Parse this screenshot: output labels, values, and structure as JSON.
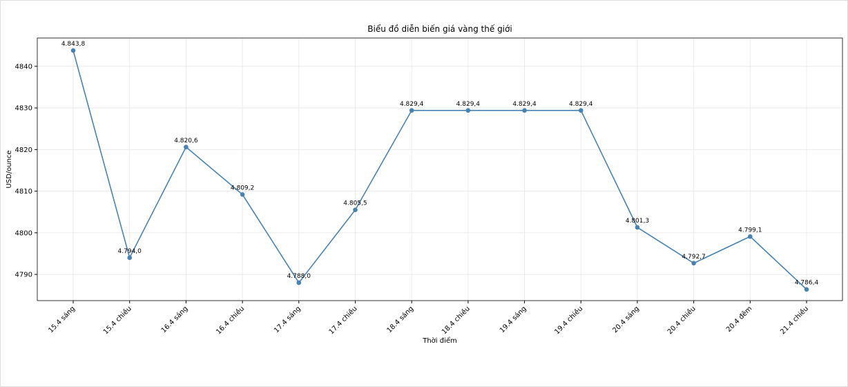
{
  "chart_data": {
    "type": "line",
    "title": "Biểu đồ diễn biến giá vàng thế giới",
    "x_label": "Thời điểm",
    "y_label": "USD/ounce",
    "categories": [
      "15.4 sáng",
      "15.4 chiều",
      "16.4 sáng",
      "16.4 chiều",
      "17.4 sáng",
      "17.4 chiều",
      "18.4 sáng",
      "18.4 chiều",
      "19.4 sáng",
      "19.4 chiều",
      "20.4 sáng",
      "20.4 chiều",
      "20.4 đêm",
      "21.4 chiều"
    ],
    "values": [
      4843.8,
      4794.0,
      4820.6,
      4809.2,
      4788.0,
      4805.5,
      4829.4,
      4829.4,
      4829.4,
      4829.4,
      4801.3,
      4792.7,
      4799.1,
      4786.4
    ],
    "value_labels": [
      "4.843,8",
      "4.794,0",
      "4.820,6",
      "4.809,2",
      "4.788,0",
      "4.805,5",
      "4.829,4",
      "4.829,4",
      "4.829,4",
      "4.829,4",
      "4.801,3",
      "4.792,7",
      "4.799,1",
      "4.786,4"
    ],
    "color": "#4682b4",
    "ylim": [
      4783.7,
      4846.8
    ],
    "yticks": [
      4790,
      4800,
      4810,
      4820,
      4830,
      4840
    ],
    "grid": true
  }
}
